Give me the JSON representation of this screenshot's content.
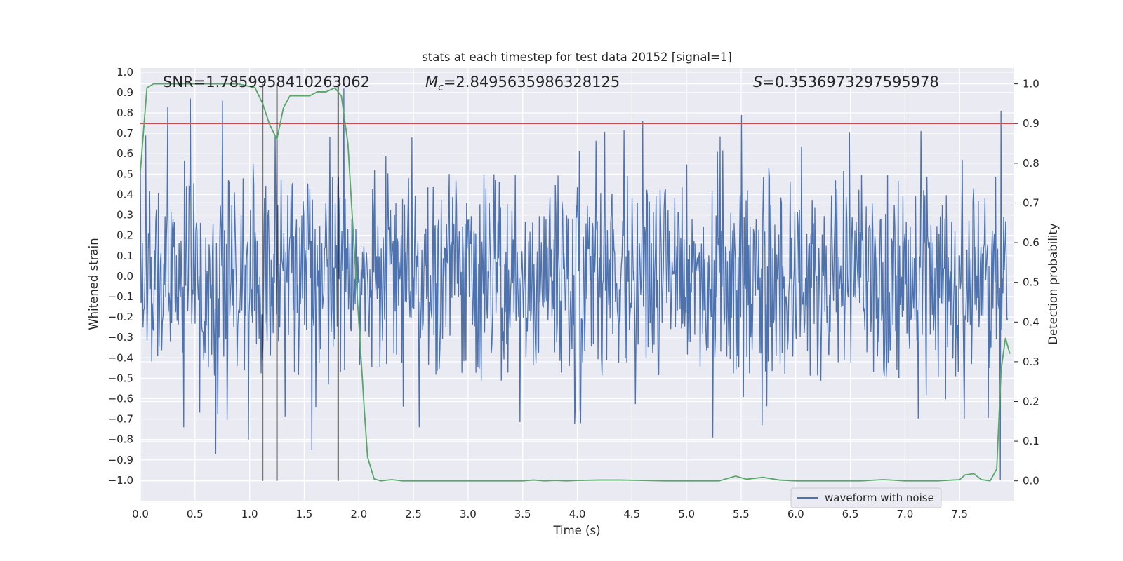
{
  "chart_data": {
    "type": "line",
    "title": "stats at each timestep for test data 20152 [signal=1]",
    "xlabel": "Time (s)",
    "ylabel_left": "Whitened strain",
    "ylabel_right": "Detection probability",
    "xlim": [
      0,
      8
    ],
    "ylim_left": [
      -1.1,
      1.02
    ],
    "ylim_right": [
      -0.05,
      1.04
    ],
    "x_ticks": [
      "0.0",
      "0.5",
      "1.0",
      "1.5",
      "2.0",
      "2.5",
      "3.0",
      "3.5",
      "4.0",
      "4.5",
      "5.0",
      "5.5",
      "6.0",
      "6.5",
      "7.0",
      "7.5"
    ],
    "y_ticks_left": [
      "1.0",
      "0.9",
      "0.8",
      "0.7",
      "0.6",
      "0.5",
      "0.4",
      "0.3",
      "0.2",
      "0.1",
      "0.0",
      "-0.1",
      "-0.2",
      "-0.3",
      "-0.4",
      "-0.5",
      "-0.6",
      "-0.7",
      "-0.8",
      "-0.9",
      "-1.0"
    ],
    "y_ticks_right": [
      "1.0",
      "0.9",
      "0.8",
      "0.7",
      "0.6",
      "0.5",
      "0.4",
      "0.3",
      "0.2",
      "0.1",
      "0.0"
    ],
    "annotations": {
      "snr_label": "SNR=1.7859958410263062",
      "mc_symbol": "M",
      "mc_sub": "c",
      "mc_value": "=2.8495635986328125",
      "s_symbol": "S",
      "s_value": "=0.3536973297595978"
    },
    "threshold": {
      "value": 0.9,
      "axis": "right",
      "color": "#c44e52"
    },
    "vertical_lines": [
      1.12,
      1.25,
      1.81
    ],
    "series": [
      {
        "name": "waveform with noise",
        "axis": "left",
        "color": "#4c72b0",
        "description": "dense noise trace, roughly +/-0.35 typical with spikes to about +/-0.85",
        "peaks": [
          {
            "x": 0.25,
            "y": 0.83
          },
          {
            "x": 0.46,
            "y": 0.87
          },
          {
            "x": 0.75,
            "y": 0.86
          },
          {
            "x": 1.86,
            "y": 0.92
          },
          {
            "x": 4.6,
            "y": 0.76
          },
          {
            "x": 5.5,
            "y": 0.79
          },
          {
            "x": 7.88,
            "y": 0.81
          }
        ],
        "troughs": [
          {
            "x": 0.4,
            "y": -0.74
          },
          {
            "x": 0.69,
            "y": -0.87
          },
          {
            "x": 0.99,
            "y": -0.8
          },
          {
            "x": 1.57,
            "y": -0.85
          },
          {
            "x": 2.55,
            "y": -0.74
          },
          {
            "x": 4.03,
            "y": -0.72
          },
          {
            "x": 5.24,
            "y": -0.79
          },
          {
            "x": 7.87,
            "y": -1.0
          }
        ]
      },
      {
        "name": "detection probability",
        "axis": "right",
        "color": "#55a868",
        "x": [
          0.0,
          0.06,
          0.12,
          0.3,
          0.6,
          0.9,
          1.05,
          1.12,
          1.18,
          1.25,
          1.31,
          1.37,
          1.45,
          1.55,
          1.62,
          1.7,
          1.78,
          1.84,
          1.9,
          1.95,
          2.0,
          2.05,
          2.08,
          2.14,
          2.2,
          2.3,
          2.4,
          2.5,
          2.7,
          3.0,
          3.3,
          3.5,
          3.6,
          3.7,
          3.8,
          3.9,
          4.0,
          4.2,
          4.4,
          4.6,
          4.8,
          5.0,
          5.2,
          5.3,
          5.45,
          5.55,
          5.7,
          5.85,
          6.0,
          6.3,
          6.6,
          6.8,
          7.0,
          7.3,
          7.5,
          7.55,
          7.63,
          7.7,
          7.78,
          7.84,
          7.88,
          7.92,
          7.96
        ],
        "y": [
          0.78,
          0.99,
          1.0,
          1.0,
          1.0,
          1.0,
          0.99,
          0.95,
          0.9,
          0.86,
          0.94,
          0.97,
          0.97,
          0.97,
          0.98,
          0.98,
          0.99,
          0.97,
          0.85,
          0.62,
          0.4,
          0.18,
          0.06,
          0.005,
          0.0,
          0.003,
          0.0,
          0.0,
          0.0,
          0.0,
          0.0,
          0.0,
          0.002,
          0.0,
          0.001,
          0.0,
          0.001,
          0.002,
          0.002,
          0.001,
          0.0,
          0.0,
          0.0,
          0.0,
          0.012,
          0.004,
          0.009,
          0.002,
          0.0,
          0.0,
          0.0,
          0.003,
          0.0,
          0.0,
          0.003,
          0.015,
          0.018,
          0.003,
          0.0,
          0.03,
          0.28,
          0.36,
          0.32
        ]
      }
    ],
    "legend": {
      "entries": [
        "waveform with noise"
      ],
      "location": "lower center"
    }
  }
}
